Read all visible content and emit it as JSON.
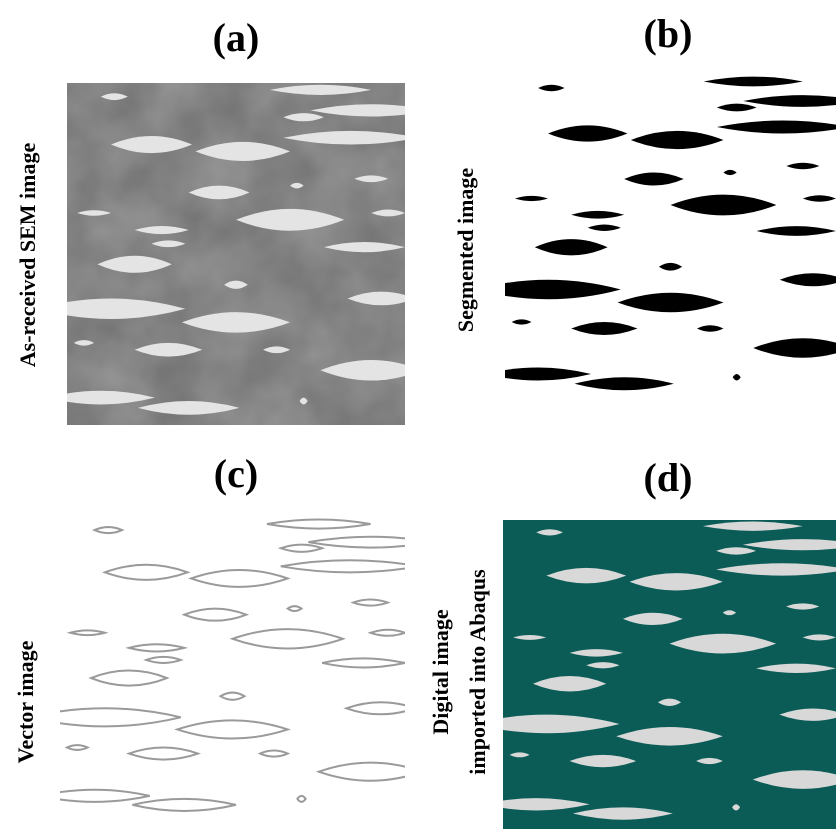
{
  "panels": [
    {
      "title": "(a)",
      "label": [
        "As-received SEM image"
      ]
    },
    {
      "title": "(b)",
      "label": [
        "Segmented image"
      ]
    },
    {
      "title": "(c)",
      "label": [
        "Vector image"
      ]
    },
    {
      "title": "(d)",
      "label": [
        "Digital image",
        "imported into Abaqus"
      ]
    }
  ]
}
